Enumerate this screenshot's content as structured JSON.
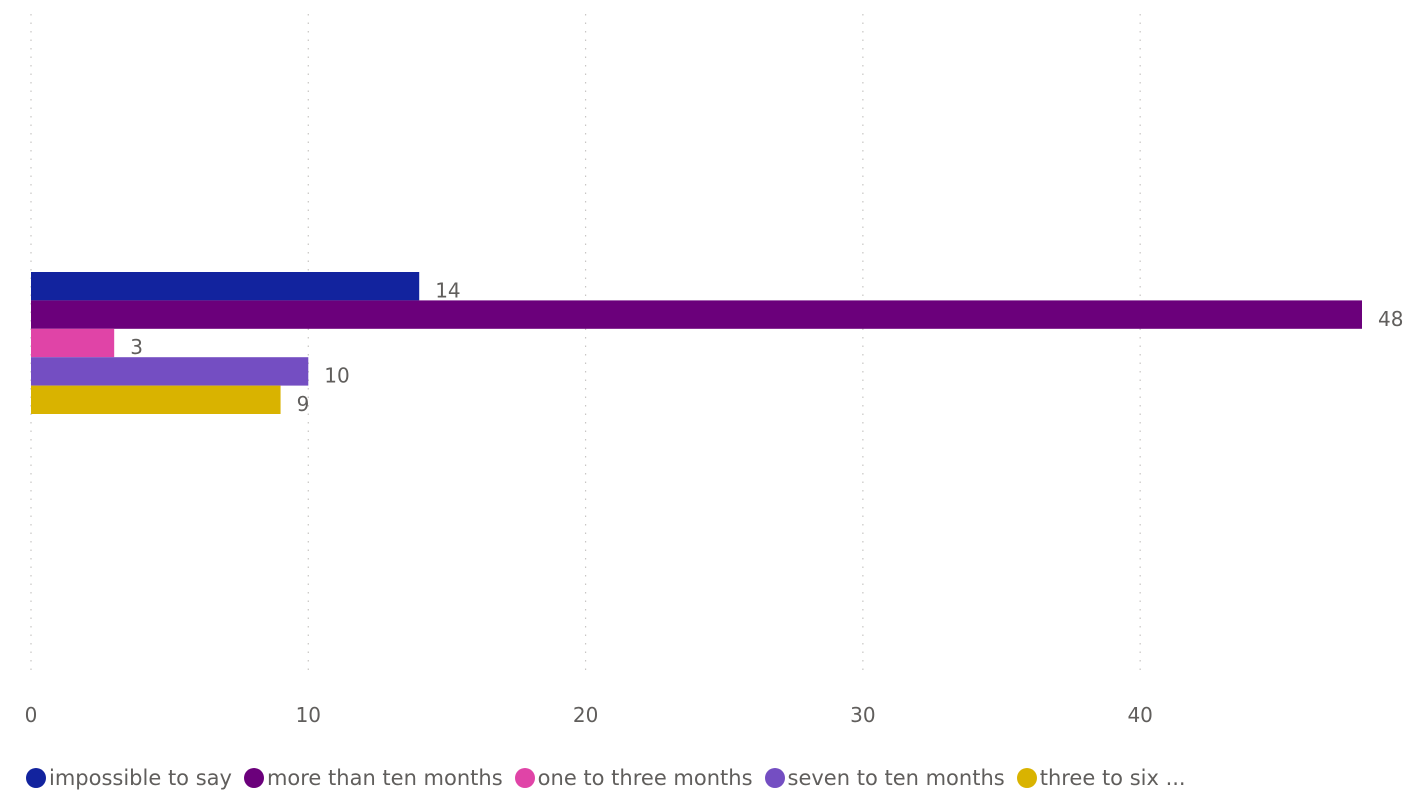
{
  "chart_data": {
    "type": "bar",
    "orientation": "horizontal",
    "x_ticks": [
      "0",
      "10",
      "20",
      "30",
      "40"
    ],
    "xlim": [
      0,
      48
    ],
    "grid": true,
    "legend_position": "bottom-left",
    "series": [
      {
        "name": "impossible to say",
        "value": 14,
        "label": "14",
        "color": "#12239E"
      },
      {
        "name": "more than ten months",
        "value": 48,
        "label": "48",
        "color": "#6B007B"
      },
      {
        "name": "one to three months",
        "value": 3,
        "label": "3",
        "color": "#E044A7"
      },
      {
        "name": "seven to ten months",
        "value": 10,
        "label": "10",
        "color": "#744EC2"
      },
      {
        "name": "three to six ...",
        "value": 9,
        "label": "9",
        "color": "#D9B300"
      }
    ]
  }
}
